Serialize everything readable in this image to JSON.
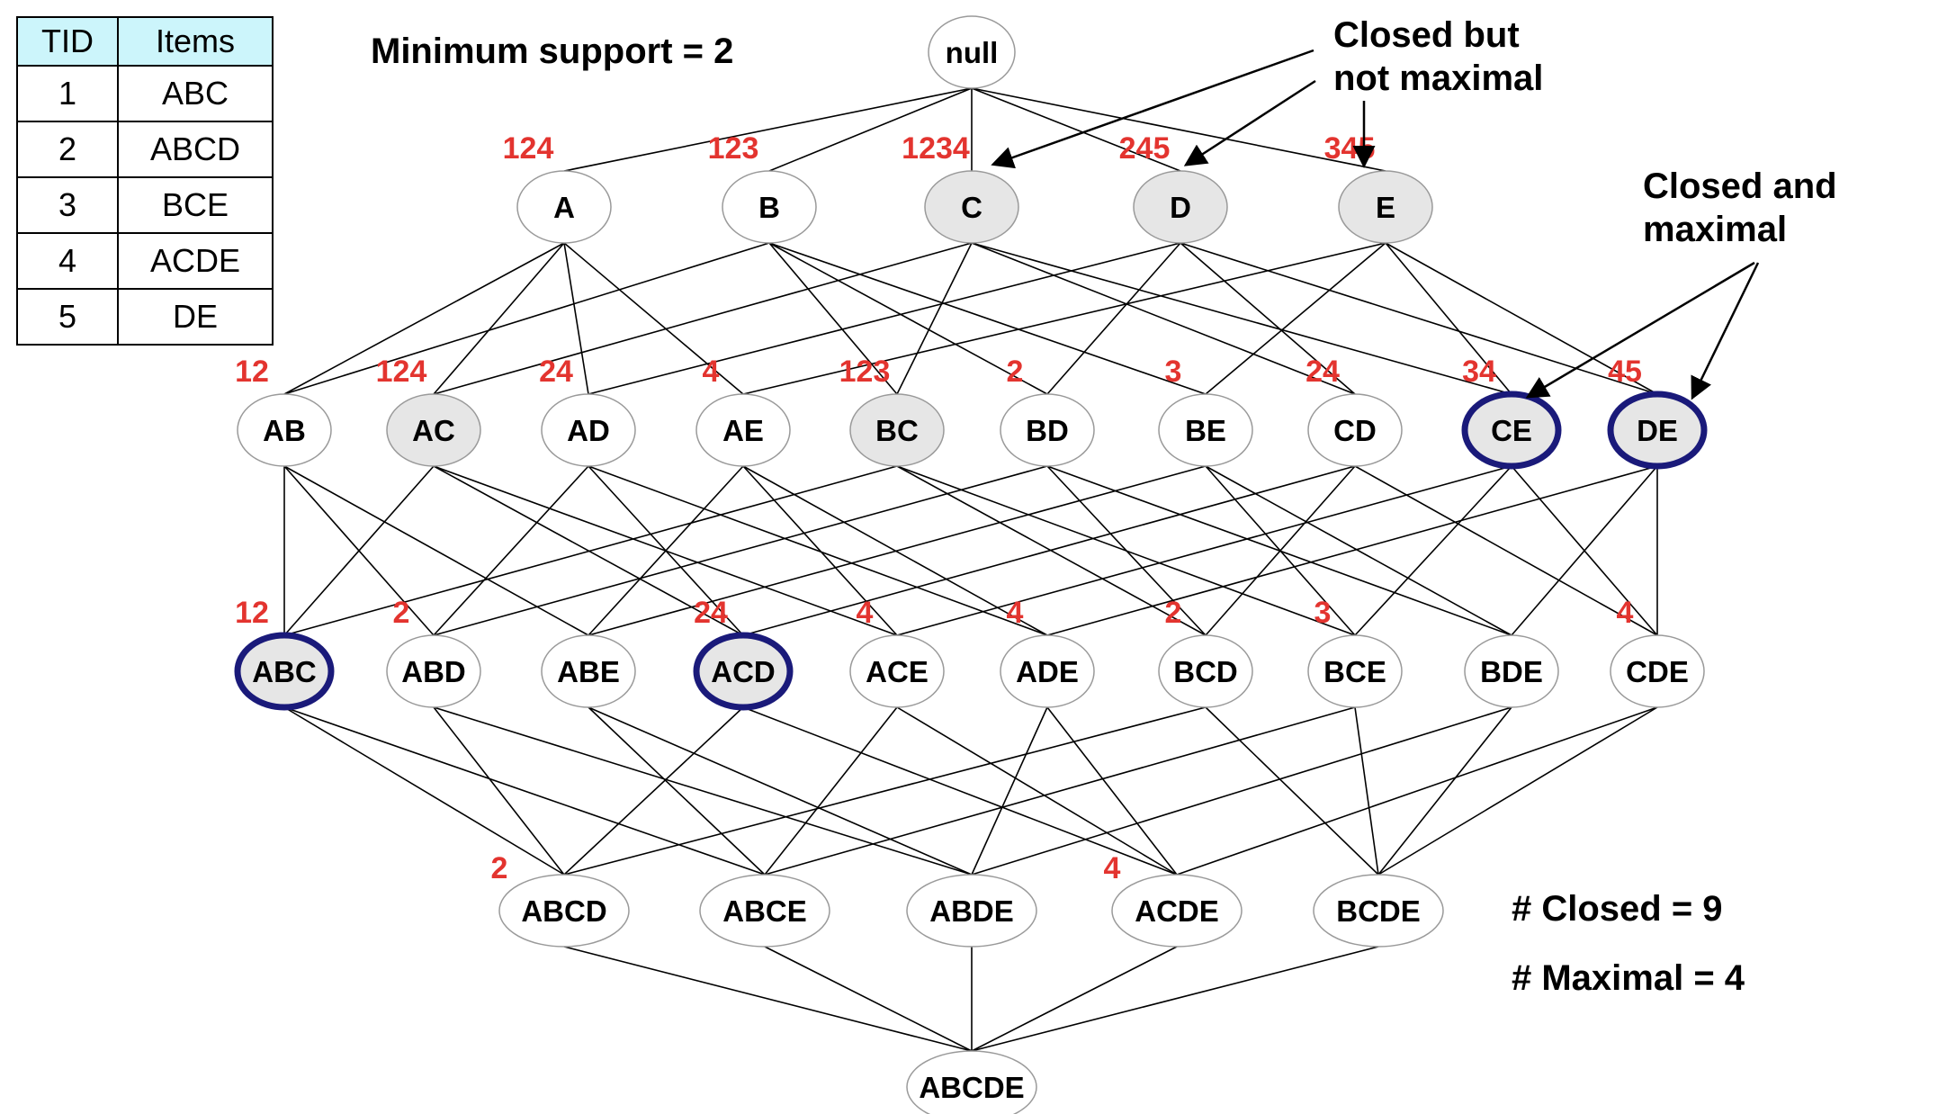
{
  "table": {
    "headers": [
      "TID",
      "Items"
    ],
    "rows": [
      [
        "1",
        "ABC"
      ],
      [
        "2",
        "ABCD"
      ],
      [
        "3",
        "BCE"
      ],
      [
        "4",
        "ACDE"
      ],
      [
        "5",
        "DE"
      ]
    ]
  },
  "min_support": "Minimum support = 2",
  "annotations": {
    "closed_not_maximal": [
      "Closed but",
      "not maximal"
    ],
    "closed_and_maximal": [
      "Closed and",
      "maximal"
    ],
    "closed_count": "# Closed = 9",
    "maximal_count": "# Maximal = 4"
  },
  "colors": {
    "tid": "#e3342f",
    "closed_fill": "#e6e6e6",
    "maximal_border": "#1a1a7a",
    "edge": "#000000",
    "node_border": "#9a9a9a",
    "table_header": "#ccf5fb"
  },
  "nodes": [
    {
      "id": "null",
      "label": "null",
      "level": 0,
      "tids": "",
      "status": "none"
    },
    {
      "id": "A",
      "label": "A",
      "level": 1,
      "tids": "124",
      "status": "none"
    },
    {
      "id": "B",
      "label": "B",
      "level": 1,
      "tids": "123",
      "status": "none"
    },
    {
      "id": "C",
      "label": "C",
      "level": 1,
      "tids": "1234",
      "status": "closed"
    },
    {
      "id": "D",
      "label": "D",
      "level": 1,
      "tids": "245",
      "status": "closed"
    },
    {
      "id": "E",
      "label": "E",
      "level": 1,
      "tids": "345",
      "status": "closed"
    },
    {
      "id": "AB",
      "label": "AB",
      "level": 2,
      "tids": "12",
      "status": "none"
    },
    {
      "id": "AC",
      "label": "AC",
      "level": 2,
      "tids": "124",
      "status": "closed"
    },
    {
      "id": "AD",
      "label": "AD",
      "level": 2,
      "tids": "24",
      "status": "none"
    },
    {
      "id": "AE",
      "label": "AE",
      "level": 2,
      "tids": "4",
      "status": "none"
    },
    {
      "id": "BC",
      "label": "BC",
      "level": 2,
      "tids": "123",
      "status": "closed"
    },
    {
      "id": "BD",
      "label": "BD",
      "level": 2,
      "tids": "2",
      "status": "none"
    },
    {
      "id": "BE",
      "label": "BE",
      "level": 2,
      "tids": "3",
      "status": "none"
    },
    {
      "id": "CD",
      "label": "CD",
      "level": 2,
      "tids": "24",
      "status": "none"
    },
    {
      "id": "CE",
      "label": "CE",
      "level": 2,
      "tids": "34",
      "status": "maximal"
    },
    {
      "id": "DE",
      "label": "DE",
      "level": 2,
      "tids": "45",
      "status": "maximal"
    },
    {
      "id": "ABC",
      "label": "ABC",
      "level": 3,
      "tids": "12",
      "status": "maximal"
    },
    {
      "id": "ABD",
      "label": "ABD",
      "level": 3,
      "tids": "2",
      "status": "none"
    },
    {
      "id": "ABE",
      "label": "ABE",
      "level": 3,
      "tids": "",
      "status": "none"
    },
    {
      "id": "ACD",
      "label": "ACD",
      "level": 3,
      "tids": "24",
      "status": "maximal"
    },
    {
      "id": "ACE",
      "label": "ACE",
      "level": 3,
      "tids": "4",
      "status": "none"
    },
    {
      "id": "ADE",
      "label": "ADE",
      "level": 3,
      "tids": "4",
      "status": "none"
    },
    {
      "id": "BCD",
      "label": "BCD",
      "level": 3,
      "tids": "2",
      "status": "none"
    },
    {
      "id": "BCE",
      "label": "BCE",
      "level": 3,
      "tids": "3",
      "status": "none"
    },
    {
      "id": "BDE",
      "label": "BDE",
      "level": 3,
      "tids": "",
      "status": "none"
    },
    {
      "id": "CDE",
      "label": "CDE",
      "level": 3,
      "tids": "4",
      "status": "none"
    },
    {
      "id": "ABCD",
      "label": "ABCD",
      "level": 4,
      "tids": "2",
      "status": "none"
    },
    {
      "id": "ABCE",
      "label": "ABCE",
      "level": 4,
      "tids": "",
      "status": "none"
    },
    {
      "id": "ABDE",
      "label": "ABDE",
      "level": 4,
      "tids": "",
      "status": "none"
    },
    {
      "id": "ACDE",
      "label": "ACDE",
      "level": 4,
      "tids": "4",
      "status": "none"
    },
    {
      "id": "BCDE",
      "label": "BCDE",
      "level": 4,
      "tids": "",
      "status": "none"
    },
    {
      "id": "ABCDE",
      "label": "ABCDE",
      "level": 5,
      "tids": "",
      "status": "none"
    }
  ]
}
